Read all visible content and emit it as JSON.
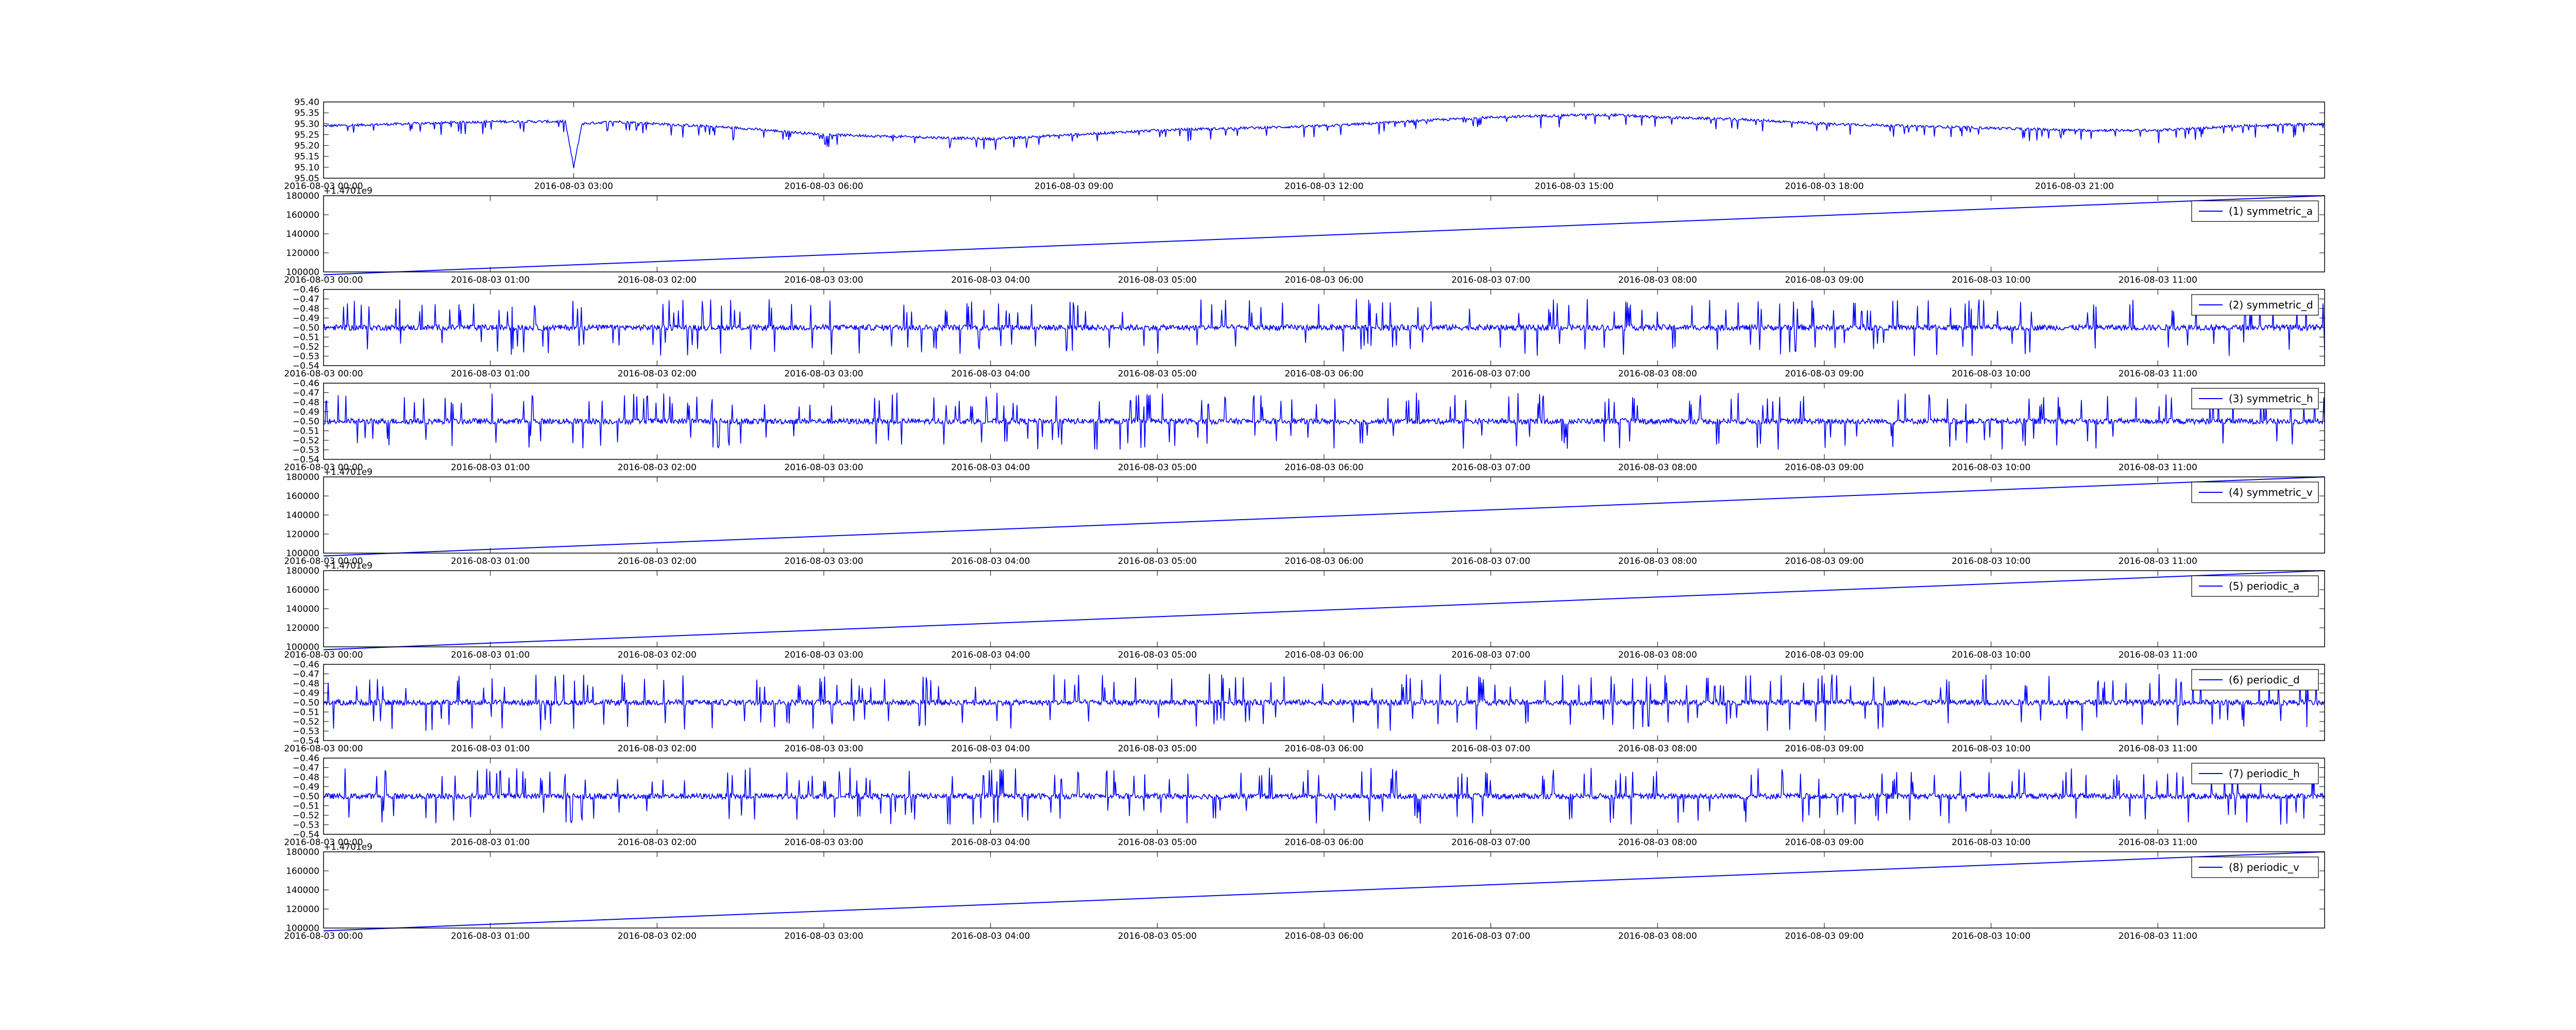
{
  "chart_data": [
    {
      "type": "line",
      "panel": 0,
      "ylim": [
        95.05,
        95.4
      ],
      "yticks": [
        "95.05",
        "95.10",
        "95.15",
        "95.20",
        "95.25",
        "95.30",
        "95.35",
        "95.40"
      ],
      "xticks": [
        "2016-08-03 00:00",
        "2016-08-03 03:00",
        "2016-08-03 06:00",
        "2016-08-03 09:00",
        "2016-08-03 12:00",
        "2016-08-03 15:00",
        "2016-08-03 18:00",
        "2016-08-03 21:00"
      ],
      "x_range_hours": [
        0,
        24
      ],
      "offset_text": "",
      "legend": "",
      "grid": false,
      "color": "#0000ff",
      "series": [
        {
          "x_hours": [
            0,
            1,
            2,
            2.9,
            3.0,
            3.1,
            3.5,
            4,
            5,
            6,
            7,
            8,
            9,
            10,
            11,
            12,
            13,
            14,
            15,
            15.5,
            16,
            17,
            18,
            19,
            20,
            21,
            22,
            23,
            24
          ],
          "values": [
            95.29,
            95.3,
            95.31,
            95.31,
            95.1,
            95.3,
            95.31,
            95.3,
            95.28,
            95.25,
            95.24,
            95.23,
            95.25,
            95.27,
            95.28,
            95.29,
            95.31,
            95.33,
            95.34,
            95.34,
            95.33,
            95.32,
            95.3,
            95.29,
            95.28,
            95.27,
            95.27,
            95.29,
            95.3
          ]
        }
      ]
    },
    {
      "type": "line",
      "panel": 1,
      "ylim": [
        100000,
        180000
      ],
      "yticks": [
        "100000",
        "120000",
        "140000",
        "160000",
        "180000"
      ],
      "xticks": [
        "2016-08-03 00:00",
        "2016-08-03 01:00",
        "2016-08-03 02:00",
        "2016-08-03 03:00",
        "2016-08-03 04:00",
        "2016-08-03 05:00",
        "2016-08-03 06:00",
        "2016-08-03 07:00",
        "2016-08-03 08:00",
        "2016-08-03 09:00",
        "2016-08-03 10:00",
        "2016-08-03 11:00"
      ],
      "x_range_hours": [
        0,
        12
      ],
      "offset_text": "+1.4701e9",
      "legend": "(1) symmetric_a",
      "grid": false,
      "color": "#0000ff",
      "series": [
        {
          "x_hours": [
            0,
            12
          ],
          "values": [
            97000,
            180000
          ]
        }
      ]
    },
    {
      "type": "line",
      "panel": 2,
      "ylim": [
        -0.54,
        -0.46
      ],
      "yticks": [
        "−0.54",
        "−0.53",
        "−0.52",
        "−0.51",
        "−0.50",
        "−0.49",
        "−0.48",
        "−0.47",
        "−0.46"
      ],
      "xticks": [
        "2016-08-03 00:00",
        "2016-08-03 01:00",
        "2016-08-03 02:00",
        "2016-08-03 03:00",
        "2016-08-03 04:00",
        "2016-08-03 05:00",
        "2016-08-03 06:00",
        "2016-08-03 07:00",
        "2016-08-03 08:00",
        "2016-08-03 09:00",
        "2016-08-03 10:00",
        "2016-08-03 11:00"
      ],
      "x_range_hours": [
        0,
        12
      ],
      "offset_text": "",
      "legend": "(2) symmetric_d",
      "grid": false,
      "color": "#0000ff",
      "series": [
        {
          "base": -0.5,
          "noise": 0.003,
          "spike_up": -0.47,
          "spike_down": -0.53
        }
      ]
    },
    {
      "type": "line",
      "panel": 3,
      "ylim": [
        -0.54,
        -0.46
      ],
      "yticks": [
        "−0.54",
        "−0.53",
        "−0.52",
        "−0.51",
        "−0.50",
        "−0.49",
        "−0.48",
        "−0.47",
        "−0.46"
      ],
      "xticks": [
        "2016-08-03 00:00",
        "2016-08-03 01:00",
        "2016-08-03 02:00",
        "2016-08-03 03:00",
        "2016-08-03 04:00",
        "2016-08-03 05:00",
        "2016-08-03 06:00",
        "2016-08-03 07:00",
        "2016-08-03 08:00",
        "2016-08-03 09:00",
        "2016-08-03 10:00",
        "2016-08-03 11:00"
      ],
      "x_range_hours": [
        0,
        12
      ],
      "offset_text": "",
      "legend": "(3) symmetric_h",
      "grid": false,
      "color": "#0000ff",
      "series": [
        {
          "base": -0.5,
          "noise": 0.003,
          "spike_up": -0.47,
          "spike_down": -0.53
        }
      ]
    },
    {
      "type": "line",
      "panel": 4,
      "ylim": [
        100000,
        180000
      ],
      "yticks": [
        "100000",
        "120000",
        "140000",
        "160000",
        "180000"
      ],
      "xticks": [
        "2016-08-03 00:00",
        "2016-08-03 01:00",
        "2016-08-03 02:00",
        "2016-08-03 03:00",
        "2016-08-03 04:00",
        "2016-08-03 05:00",
        "2016-08-03 06:00",
        "2016-08-03 07:00",
        "2016-08-03 08:00",
        "2016-08-03 09:00",
        "2016-08-03 10:00",
        "2016-08-03 11:00"
      ],
      "x_range_hours": [
        0,
        12
      ],
      "offset_text": "+1.4701e9",
      "legend": "(4) symmetric_v",
      "grid": false,
      "color": "#0000ff",
      "series": [
        {
          "x_hours": [
            0,
            12
          ],
          "values": [
            97000,
            180000
          ]
        }
      ]
    },
    {
      "type": "line",
      "panel": 5,
      "ylim": [
        100000,
        180000
      ],
      "yticks": [
        "100000",
        "120000",
        "140000",
        "160000",
        "180000"
      ],
      "xticks": [
        "2016-08-03 00:00",
        "2016-08-03 01:00",
        "2016-08-03 02:00",
        "2016-08-03 03:00",
        "2016-08-03 04:00",
        "2016-08-03 05:00",
        "2016-08-03 06:00",
        "2016-08-03 07:00",
        "2016-08-03 08:00",
        "2016-08-03 09:00",
        "2016-08-03 10:00",
        "2016-08-03 11:00"
      ],
      "x_range_hours": [
        0,
        12
      ],
      "offset_text": "+1.4701e9",
      "legend": "(5) periodic_a",
      "grid": false,
      "color": "#0000ff",
      "series": [
        {
          "x_hours": [
            0,
            12
          ],
          "values": [
            97000,
            180000
          ]
        }
      ]
    },
    {
      "type": "line",
      "panel": 6,
      "ylim": [
        -0.54,
        -0.46
      ],
      "yticks": [
        "−0.54",
        "−0.53",
        "−0.52",
        "−0.51",
        "−0.50",
        "−0.49",
        "−0.48",
        "−0.47",
        "−0.46"
      ],
      "xticks": [
        "2016-08-03 00:00",
        "2016-08-03 01:00",
        "2016-08-03 02:00",
        "2016-08-03 03:00",
        "2016-08-03 04:00",
        "2016-08-03 05:00",
        "2016-08-03 06:00",
        "2016-08-03 07:00",
        "2016-08-03 08:00",
        "2016-08-03 09:00",
        "2016-08-03 10:00",
        "2016-08-03 11:00"
      ],
      "x_range_hours": [
        0,
        12
      ],
      "offset_text": "",
      "legend": "(6) periodic_d",
      "grid": false,
      "color": "#0000ff",
      "series": [
        {
          "base": -0.5,
          "noise": 0.003,
          "spike_up": -0.47,
          "spike_down": -0.53
        }
      ]
    },
    {
      "type": "line",
      "panel": 7,
      "ylim": [
        -0.54,
        -0.46
      ],
      "yticks": [
        "−0.54",
        "−0.53",
        "−0.52",
        "−0.51",
        "−0.50",
        "−0.49",
        "−0.48",
        "−0.47",
        "−0.46"
      ],
      "xticks": [
        "2016-08-03 00:00",
        "2016-08-03 01:00",
        "2016-08-03 02:00",
        "2016-08-03 03:00",
        "2016-08-03 04:00",
        "2016-08-03 05:00",
        "2016-08-03 06:00",
        "2016-08-03 07:00",
        "2016-08-03 08:00",
        "2016-08-03 09:00",
        "2016-08-03 10:00",
        "2016-08-03 11:00"
      ],
      "x_range_hours": [
        0,
        12
      ],
      "offset_text": "",
      "legend": "(7) periodic_h",
      "grid": false,
      "color": "#0000ff",
      "series": [
        {
          "base": -0.5,
          "noise": 0.003,
          "spike_up": -0.47,
          "spike_down": -0.53
        }
      ]
    },
    {
      "type": "line",
      "panel": 8,
      "ylim": [
        100000,
        180000
      ],
      "yticks": [
        "100000",
        "120000",
        "140000",
        "160000",
        "180000"
      ],
      "xticks": [
        "2016-08-03 00:00",
        "2016-08-03 01:00",
        "2016-08-03 02:00",
        "2016-08-03 03:00",
        "2016-08-03 04:00",
        "2016-08-03 05:00",
        "2016-08-03 06:00",
        "2016-08-03 07:00",
        "2016-08-03 08:00",
        "2016-08-03 09:00",
        "2016-08-03 10:00",
        "2016-08-03 11:00"
      ],
      "x_range_hours": [
        0,
        12
      ],
      "offset_text": "+1.4701e9",
      "legend": "(8) periodic_v",
      "grid": false,
      "color": "#0000ff",
      "series": [
        {
          "x_hours": [
            0,
            12
          ],
          "values": [
            97000,
            180000
          ]
        }
      ]
    }
  ]
}
